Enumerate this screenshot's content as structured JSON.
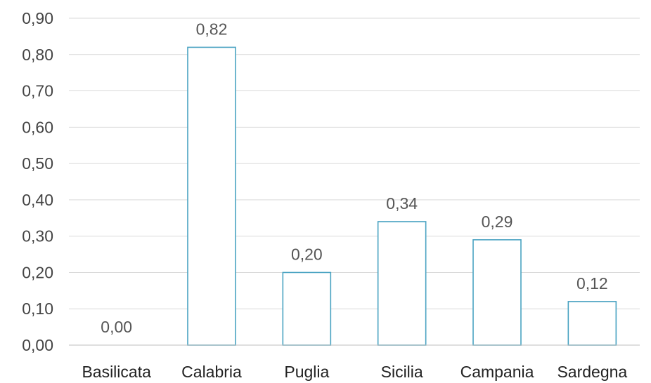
{
  "chart_data": {
    "type": "bar",
    "categories": [
      "Basilicata",
      "Calabria",
      "Puglia",
      "Sicilia",
      "Campania",
      "Sardegna"
    ],
    "values": [
      0.0,
      0.82,
      0.2,
      0.34,
      0.29,
      0.12
    ],
    "value_labels": [
      "0,00",
      "0,82",
      "0,20",
      "0,34",
      "0,29",
      "0,12"
    ],
    "y_ticks": [
      0.0,
      0.1,
      0.2,
      0.3,
      0.4,
      0.5,
      0.6,
      0.7,
      0.8,
      0.9
    ],
    "y_tick_labels": [
      "0,00",
      "0,10",
      "0,20",
      "0,30",
      "0,40",
      "0,50",
      "0,60",
      "0,70",
      "0,80",
      "0,90"
    ],
    "ylim": [
      0,
      0.9
    ],
    "grid": true,
    "legend": "none",
    "bar_stroke_color": "#4aa3c2",
    "bar_fill_color": "#ffffff"
  }
}
